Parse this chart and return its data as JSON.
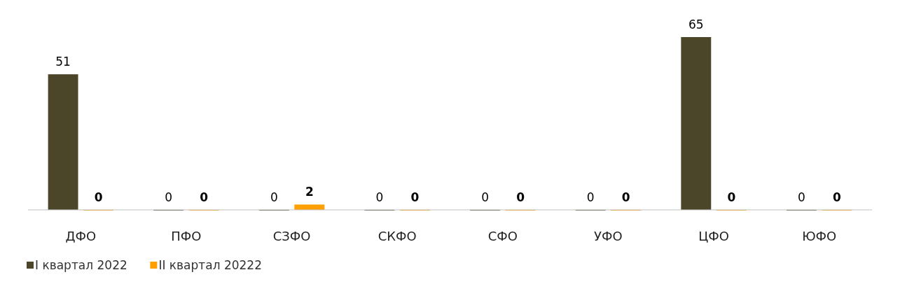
{
  "chart_data": {
    "type": "bar",
    "categories": [
      "ДФО",
      "ПФО",
      "СЗФО",
      "СКФО",
      "СФО",
      "УФО",
      "ЦФО",
      "ЮФО"
    ],
    "series": [
      {
        "name": "I квартал 2022",
        "color": "#4b4629",
        "values": [
          51,
          0,
          0,
          0,
          0,
          0,
          65,
          0
        ]
      },
      {
        "name": "II квартал 20222",
        "color": "#ffa000",
        "values": [
          0,
          0,
          2,
          0,
          0,
          0,
          0,
          0
        ]
      }
    ],
    "data_labels": true,
    "legend": "bottom left",
    "grid": false
  }
}
